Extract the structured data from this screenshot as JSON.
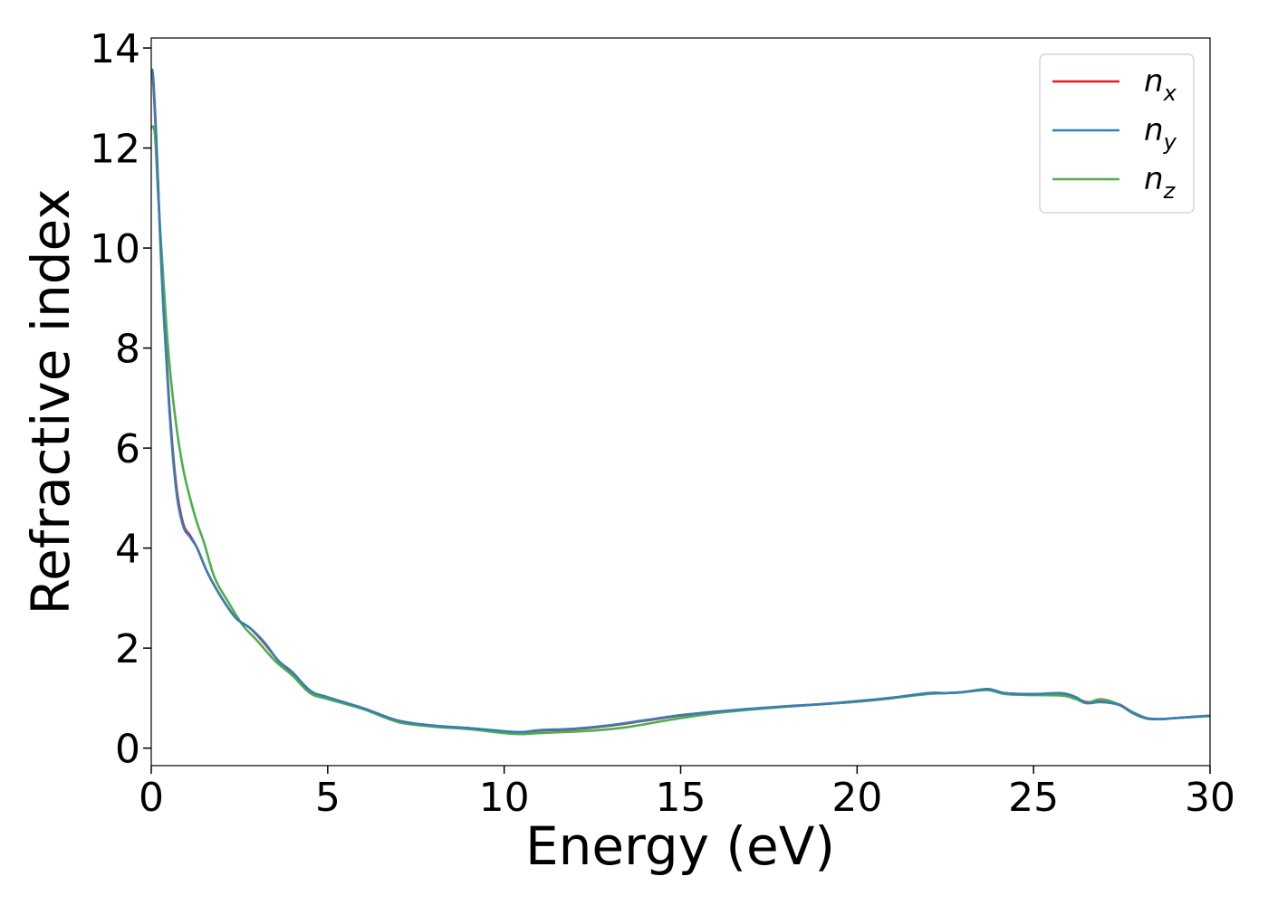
{
  "chart_data": {
    "type": "line",
    "title": "",
    "xlabel": "Energy (eV)",
    "ylabel": "Refractive index",
    "xlim": [
      0,
      30
    ],
    "ylim": [
      -0.35,
      14.2
    ],
    "xticks": [
      "0",
      "5",
      "10",
      "15",
      "20",
      "25",
      "30"
    ],
    "yticks": [
      "0",
      "2",
      "4",
      "6",
      "8",
      "10",
      "12",
      "14"
    ],
    "grid": false,
    "legend_position": "top-right",
    "series": [
      {
        "name": "n_x",
        "legend_base": "n",
        "legend_sub": "x",
        "color": "#e41a1c",
        "x": [
          0,
          0.05,
          0.15,
          0.3,
          0.5,
          0.7,
          0.9,
          1.1,
          1.3,
          1.6,
          2.0,
          2.4,
          2.8,
          3.2,
          3.6,
          4.0,
          4.5,
          5.0,
          6.0,
          7.0,
          8.0,
          9.0,
          10.0,
          10.5,
          11.0,
          12.0,
          13.0,
          14.0,
          15.0,
          16.0,
          17.0,
          18.0,
          19.0,
          20.0,
          21.0,
          22.0,
          22.5,
          23.0,
          23.7,
          24.2,
          25.0,
          25.8,
          26.2,
          26.5,
          26.9,
          27.4,
          27.8,
          28.2,
          28.6,
          29.0,
          30.0
        ],
        "y": [
          13.5,
          13.4,
          12.0,
          9.5,
          7.0,
          5.3,
          4.5,
          4.25,
          4.0,
          3.5,
          3.0,
          2.6,
          2.4,
          2.1,
          1.75,
          1.5,
          1.15,
          1.0,
          0.8,
          0.55,
          0.45,
          0.4,
          0.33,
          0.32,
          0.35,
          0.38,
          0.45,
          0.55,
          0.65,
          0.72,
          0.78,
          0.83,
          0.88,
          0.93,
          1.0,
          1.1,
          1.1,
          1.12,
          1.18,
          1.1,
          1.08,
          1.08,
          1.0,
          0.92,
          0.93,
          0.88,
          0.72,
          0.6,
          0.58,
          0.6,
          0.65
        ]
      },
      {
        "name": "n_y",
        "legend_base": "n",
        "legend_sub": "y",
        "color": "#377eb8",
        "x": [
          0,
          0.05,
          0.15,
          0.3,
          0.5,
          0.7,
          0.9,
          1.1,
          1.3,
          1.6,
          2.0,
          2.4,
          2.8,
          3.2,
          3.6,
          4.0,
          4.5,
          5.0,
          6.0,
          7.0,
          8.0,
          9.0,
          10.0,
          10.5,
          11.0,
          12.0,
          13.0,
          14.0,
          15.0,
          16.0,
          17.0,
          18.0,
          19.0,
          20.0,
          21.0,
          22.0,
          22.5,
          23.0,
          23.7,
          24.2,
          25.0,
          25.8,
          26.2,
          26.5,
          26.9,
          27.4,
          27.8,
          28.2,
          28.6,
          29.0,
          30.0
        ],
        "y": [
          13.5,
          13.45,
          12.1,
          9.4,
          6.9,
          5.2,
          4.45,
          4.22,
          4.0,
          3.5,
          3.0,
          2.6,
          2.4,
          2.12,
          1.75,
          1.52,
          1.15,
          1.02,
          0.8,
          0.55,
          0.45,
          0.4,
          0.34,
          0.32,
          0.36,
          0.39,
          0.46,
          0.56,
          0.66,
          0.73,
          0.79,
          0.84,
          0.88,
          0.94,
          1.01,
          1.1,
          1.1,
          1.12,
          1.18,
          1.1,
          1.08,
          1.1,
          1.02,
          0.9,
          0.92,
          0.87,
          0.72,
          0.6,
          0.58,
          0.6,
          0.65
        ]
      },
      {
        "name": "n_z",
        "legend_base": "n",
        "legend_sub": "z",
        "color": "#4daf4a",
        "x": [
          0,
          0.1,
          0.2,
          0.35,
          0.5,
          0.7,
          0.9,
          1.1,
          1.3,
          1.5,
          1.8,
          2.2,
          2.6,
          3.0,
          3.5,
          4.0,
          4.5,
          5.0,
          6.0,
          7.0,
          8.0,
          9.0,
          10.0,
          10.5,
          11.0,
          12.0,
          12.5,
          13.0,
          13.5,
          14.0,
          15.0,
          16.0,
          17.0,
          18.0,
          19.0,
          20.0,
          21.0,
          22.0,
          22.5,
          23.0,
          23.7,
          24.2,
          25.0,
          25.8,
          26.2,
          26.5,
          26.9,
          27.4,
          27.8,
          28.2,
          28.6,
          29.0,
          30.0
        ],
        "y": [
          12.4,
          12.3,
          11.0,
          9.3,
          7.8,
          6.5,
          5.6,
          5.0,
          4.5,
          4.1,
          3.4,
          2.9,
          2.45,
          2.15,
          1.75,
          1.45,
          1.1,
          0.98,
          0.78,
          0.52,
          0.43,
          0.38,
          0.3,
          0.28,
          0.3,
          0.33,
          0.35,
          0.38,
          0.42,
          0.48,
          0.6,
          0.7,
          0.77,
          0.83,
          0.88,
          0.93,
          1.0,
          1.08,
          1.1,
          1.12,
          1.16,
          1.08,
          1.06,
          1.05,
          0.98,
          0.9,
          0.98,
          0.88,
          0.7,
          0.59,
          0.58,
          0.6,
          0.64
        ]
      }
    ]
  }
}
